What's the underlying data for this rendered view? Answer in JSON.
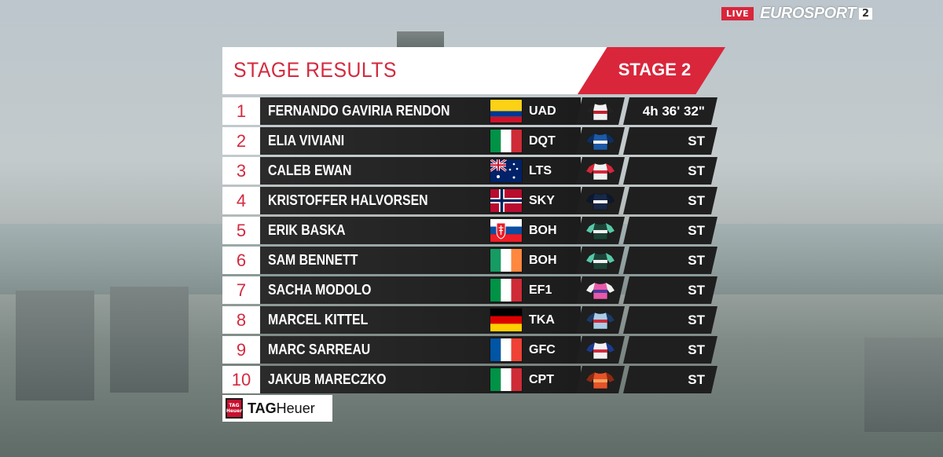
{
  "broadcast": {
    "live_label": "LIVE",
    "network": "EUROSPORT",
    "channel": "2"
  },
  "header": {
    "title": "STAGE RESULTS",
    "stage_label": "STAGE 2"
  },
  "results": [
    {
      "position": "1",
      "name": "FERNANDO GAVIRIA RENDON",
      "flag": "colombia",
      "team": "UAD",
      "jersey": "white-red",
      "time": "4h 36' 32\""
    },
    {
      "position": "2",
      "name": "ELIA VIVIANI",
      "flag": "italy",
      "team": "DQT",
      "jersey": "blue",
      "time": "ST"
    },
    {
      "position": "3",
      "name": "CALEB EWAN",
      "flag": "australia",
      "team": "LTS",
      "jersey": "red-white",
      "time": "ST"
    },
    {
      "position": "4",
      "name": "KRISTOFFER HALVORSEN",
      "flag": "norway",
      "team": "SKY",
      "jersey": "navy",
      "time": "ST"
    },
    {
      "position": "5",
      "name": "ERIK BASKA",
      "flag": "slovakia",
      "team": "BOH",
      "jersey": "teal",
      "time": "ST"
    },
    {
      "position": "6",
      "name": "SAM BENNETT",
      "flag": "ireland",
      "team": "BOH",
      "jersey": "teal",
      "time": "ST"
    },
    {
      "position": "7",
      "name": "SACHA MODOLO",
      "flag": "italy",
      "team": "EF1",
      "jersey": "pink",
      "time": "ST"
    },
    {
      "position": "8",
      "name": "MARCEL KITTEL",
      "flag": "germany",
      "team": "TKA",
      "jersey": "lightblue",
      "time": "ST"
    },
    {
      "position": "9",
      "name": "MARC SARREAU",
      "flag": "france",
      "team": "GFC",
      "jersey": "blue-white-red",
      "time": "ST"
    },
    {
      "position": "10",
      "name": "JAKUB MARECZKO",
      "flag": "italy",
      "team": "CPT",
      "jersey": "orange",
      "time": "ST"
    }
  ],
  "sponsor": {
    "badge": "TAG Heuer",
    "brand_bold": "TAG",
    "brand_rest": "Heuer"
  },
  "colors": {
    "accent_red": "#d9263b",
    "row_dark": "#1f1f1f"
  }
}
